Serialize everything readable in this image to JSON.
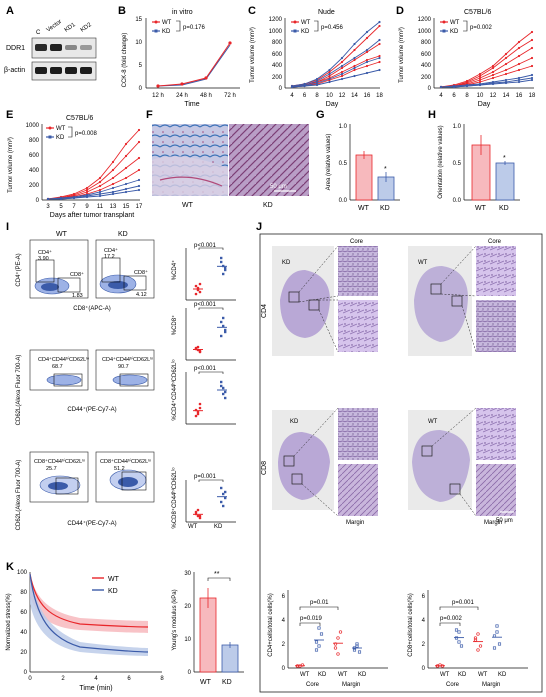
{
  "panels": {
    "A": {
      "letter": "A",
      "lanes": [
        "C",
        "Vector",
        "KD1",
        "KD2"
      ],
      "rows": [
        "DDR1",
        "β-actin"
      ]
    },
    "B": {
      "letter": "B",
      "title": "in vitro",
      "ylabel": "CCK-8 (fold change)",
      "xlabel": "Time",
      "pval": "p=0.176",
      "legend": [
        "WT",
        "KD"
      ],
      "yticks": [
        "0",
        "5",
        "10",
        "15"
      ],
      "xticks": [
        "12 h",
        "24 h",
        "48 h",
        "72 h"
      ]
    },
    "C": {
      "letter": "C",
      "title": "Nude",
      "ylabel": "Tumor volume (mm³)",
      "xlabel": "Day",
      "pval": "p=0.456",
      "legend": [
        "WT",
        "KD"
      ],
      "yticks": [
        "0",
        "200",
        "400",
        "600",
        "800",
        "1000",
        "1200"
      ],
      "xticks": [
        "4",
        "6",
        "8",
        "10",
        "12",
        "14",
        "16",
        "18"
      ]
    },
    "D": {
      "letter": "D",
      "title": "C57BL/6",
      "ylabel": "Tumor volume (mm³)",
      "xlabel": "Day",
      "pval": "p=0.002",
      "legend": [
        "WT",
        "KD"
      ],
      "yticks": [
        "0",
        "200",
        "400",
        "600",
        "800",
        "1000",
        "1200"
      ],
      "xticks": [
        "4",
        "6",
        "8",
        "10",
        "12",
        "14",
        "16",
        "18"
      ]
    },
    "E": {
      "letter": "E",
      "title": "C57BL/6",
      "ylabel": "Tumor volume (mm³)",
      "xlabel": "Days after tumor transplant",
      "pval": "p=0.008",
      "legend": [
        "WT",
        "KD"
      ],
      "yticks": [
        "0",
        "200",
        "400",
        "600",
        "800",
        "1000"
      ],
      "xticks": [
        "3",
        "5",
        "7",
        "9",
        "11",
        "13",
        "15",
        "17"
      ]
    },
    "F": {
      "letter": "F",
      "labels": [
        "WT",
        "KD"
      ],
      "scale": "50 μm"
    },
    "G": {
      "letter": "G",
      "ylabel": "Area (relative values)",
      "cats": [
        "WT",
        "KD"
      ],
      "yticks": [
        "0.0",
        "0.5",
        "1.0"
      ],
      "star": "*"
    },
    "H": {
      "letter": "H",
      "ylabel": "Orientation (relative values)",
      "cats": [
        "WT",
        "KD"
      ],
      "yticks": [
        "0.0",
        "0.5",
        "1.0"
      ],
      "star": "*"
    },
    "I": {
      "letter": "I",
      "cols": [
        "WT",
        "KD"
      ],
      "row1": {
        "ylabel": "CD4⁺(PE-A)",
        "xlabel": "CD8⁺(APC-A)",
        "gates": {
          "wt": [
            "CD4⁺",
            "3.90",
            "CD8⁺",
            "1.83"
          ],
          "kd": [
            "CD4⁺",
            "17.2",
            "CD8⁺",
            "4.12"
          ]
        },
        "dot_ylabel": "%CD4⁺",
        "pval": "p<0.001"
      },
      "row2": {
        "dot_ylabel": "%CD8⁺",
        "pval": "p<0.001"
      },
      "row3": {
        "ylabel": "CD62L(Alexa Fluor 700-A)",
        "xlabel": "CD44⁺(PE-Cy7-A)",
        "gates": {
          "wt": [
            "CD4⁺CD44ʰⁱCD62Lˡᵒ",
            "68.7"
          ],
          "kd": [
            "CD4⁺CD44ʰⁱCD62Lˡᵒ",
            "90.7"
          ]
        },
        "dot_ylabel": "%CD4⁺CD44ʰⁱCD62Lˡᵒ",
        "pval": "p<0.001"
      },
      "row4": {
        "ylabel": "CD62L(Alexa Fluor 700-A)",
        "xlabel": "CD44⁺(PE-Cy7-A)",
        "gates": {
          "wt": [
            "CD8⁺CD44ʰⁱCD62Lˡᵒ",
            "25.7"
          ],
          "kd": [
            "CD8⁺CD44ʰⁱCD62Lˡᵒ",
            "51.2"
          ]
        },
        "dot_ylabel": "%CD8⁺CD44ʰⁱCD62Lˡᵒ",
        "pval": "p=0.001"
      },
      "cats": [
        "WT",
        "KD"
      ]
    },
    "J": {
      "letter": "J",
      "row_labels": [
        "CD4",
        "CD8"
      ],
      "col_labels": [
        "KD",
        "WT"
      ],
      "core": "Core",
      "margin": "Margin",
      "scale": "50 μm",
      "chart1": {
        "ylabel": "CD4+cells/total cells(%)",
        "p1": "p=0.019",
        "p2": "p=0.01",
        "cats": [
          "WT",
          "KD",
          "WT",
          "KD"
        ],
        "groups": [
          "Core",
          "Margin"
        ],
        "yticks": [
          "0",
          "2",
          "4",
          "6"
        ]
      },
      "chart2": {
        "ylabel": "CD8+cells/total cells(%)",
        "p1": "p=0.002",
        "p2": "p=0.001",
        "cats": [
          "WT",
          "KD",
          "WT",
          "KD"
        ],
        "groups": [
          "Core",
          "Margin"
        ],
        "yticks": [
          "0",
          "2",
          "4",
          "6"
        ]
      }
    },
    "K": {
      "letter": "K",
      "ylabel": "Normalized stress(%)",
      "xlabel": "Time (min)",
      "legend": [
        "WT",
        "KD"
      ],
      "yticks": [
        "0",
        "20",
        "40",
        "60",
        "80",
        "100"
      ],
      "xticks": [
        "0",
        "2",
        "4",
        "6",
        "8"
      ],
      "bar": {
        "ylabel": "Young's modulus (kPa)",
        "cats": [
          "WT",
          "KD"
        ],
        "yticks": [
          "0",
          "10",
          "20",
          "30"
        ],
        "sig": "**"
      }
    }
  },
  "colors": {
    "wt": "#e8262a",
    "kd": "#3b5ba9",
    "pink": "#f7b9bd",
    "lightblue": "#bccbe9",
    "stain": "#b9a2cf"
  }
}
